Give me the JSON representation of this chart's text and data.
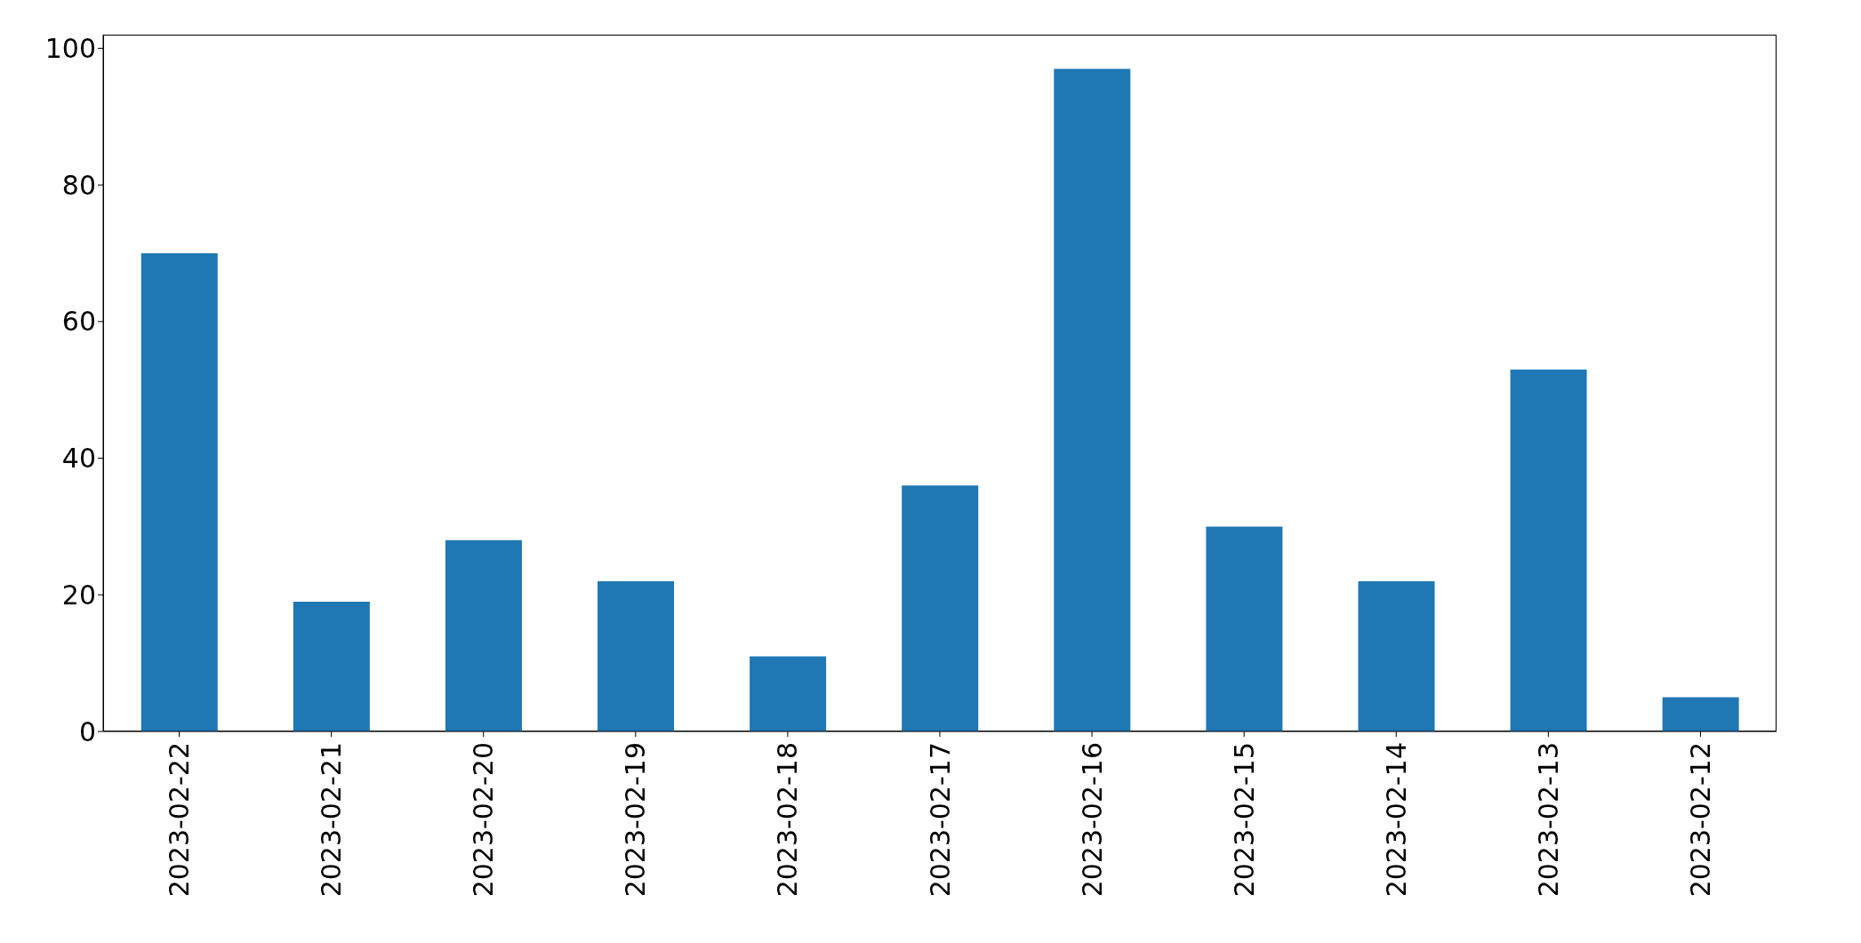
{
  "chart_data": {
    "type": "bar",
    "categories": [
      "2023-02-22",
      "2023-02-21",
      "2023-02-20",
      "2023-02-19",
      "2023-02-18",
      "2023-02-17",
      "2023-02-16",
      "2023-02-15",
      "2023-02-14",
      "2023-02-13",
      "2023-02-12"
    ],
    "values": [
      70,
      19,
      28,
      22,
      11,
      36,
      97,
      30,
      22,
      53,
      5
    ],
    "color": "#1f77b4",
    "ylim": [
      0,
      102
    ],
    "yticks": [
      0,
      20,
      40,
      60,
      80,
      100
    ],
    "grid": false
  }
}
